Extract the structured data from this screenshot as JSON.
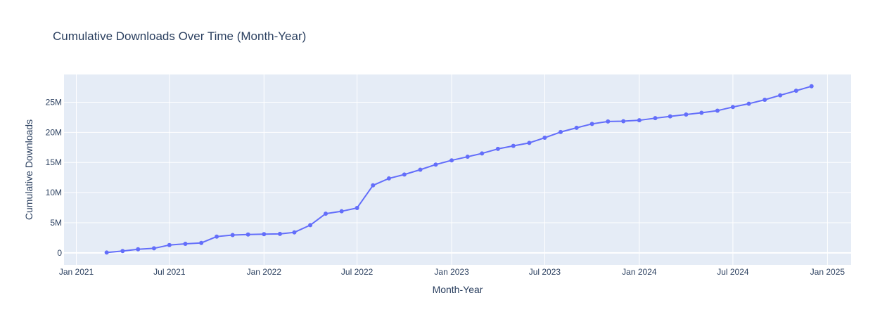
{
  "chart_data": {
    "type": "line",
    "title": "Cumulative Downloads Over Time (Month-Year)",
    "xlabel": "Month-Year",
    "ylabel": "Cumulative Downloads",
    "x_ticks": [
      {
        "date": "2021-01-01",
        "label": "Jan 2021"
      },
      {
        "date": "2021-07-01",
        "label": "Jul 2021"
      },
      {
        "date": "2022-01-01",
        "label": "Jan 2022"
      },
      {
        "date": "2022-07-01",
        "label": "Jul 2022"
      },
      {
        "date": "2023-01-01",
        "label": "Jan 2023"
      },
      {
        "date": "2023-07-01",
        "label": "Jul 2023"
      },
      {
        "date": "2024-01-01",
        "label": "Jan 2024"
      },
      {
        "date": "2024-07-01",
        "label": "Jul 2024"
      },
      {
        "date": "2025-01-01",
        "label": "Jan 2025"
      }
    ],
    "y_ticks": [
      {
        "value": 0,
        "label": "0"
      },
      {
        "value": 5000000,
        "label": "5M"
      },
      {
        "value": 10000000,
        "label": "10M"
      },
      {
        "value": 15000000,
        "label": "15M"
      },
      {
        "value": 20000000,
        "label": "20M"
      },
      {
        "value": 25000000,
        "label": "25M"
      }
    ],
    "xlim": [
      "2020-12-08",
      "2025-02-16"
    ],
    "ylim": [
      -2000000,
      29600000
    ],
    "grid": true,
    "legend": "none",
    "colors": {
      "line": "#636efa",
      "plot_bg": "#e5ecf6",
      "grid": "#ffffff",
      "text": "#2a3f5f"
    },
    "series": [
      {
        "x": [
          "2021-03-01",
          "2021-04-01",
          "2021-05-01",
          "2021-06-01",
          "2021-07-01",
          "2021-08-01",
          "2021-09-01",
          "2021-10-01",
          "2021-11-01",
          "2021-12-01",
          "2022-01-01",
          "2022-02-01",
          "2022-03-01",
          "2022-04-01",
          "2022-05-01",
          "2022-06-01",
          "2022-07-01",
          "2022-08-01",
          "2022-09-01",
          "2022-10-01",
          "2022-11-01",
          "2022-12-01",
          "2023-01-01",
          "2023-02-01",
          "2023-03-01",
          "2023-04-01",
          "2023-05-01",
          "2023-06-01",
          "2023-07-01",
          "2023-08-01",
          "2023-09-01",
          "2023-10-01",
          "2023-11-01",
          "2023-12-01",
          "2024-01-01",
          "2024-02-01",
          "2024-03-01",
          "2024-04-01",
          "2024-05-01",
          "2024-06-01",
          "2024-07-01",
          "2024-08-01",
          "2024-09-01",
          "2024-10-01",
          "2024-11-01",
          "2024-12-01"
        ],
        "y": [
          50000,
          300000,
          600000,
          750000,
          1300000,
          1500000,
          1650000,
          2700000,
          2950000,
          3050000,
          3100000,
          3150000,
          3400000,
          4600000,
          6500000,
          6900000,
          7450000,
          11200000,
          12350000,
          13000000,
          13800000,
          14650000,
          15350000,
          15950000,
          16500000,
          17250000,
          17750000,
          18250000,
          19100000,
          20050000,
          20750000,
          21400000,
          21800000,
          21850000,
          22000000,
          22350000,
          22650000,
          22950000,
          23250000,
          23600000,
          24200000,
          24750000,
          25400000,
          26150000,
          26900000,
          27650000
        ]
      }
    ]
  }
}
